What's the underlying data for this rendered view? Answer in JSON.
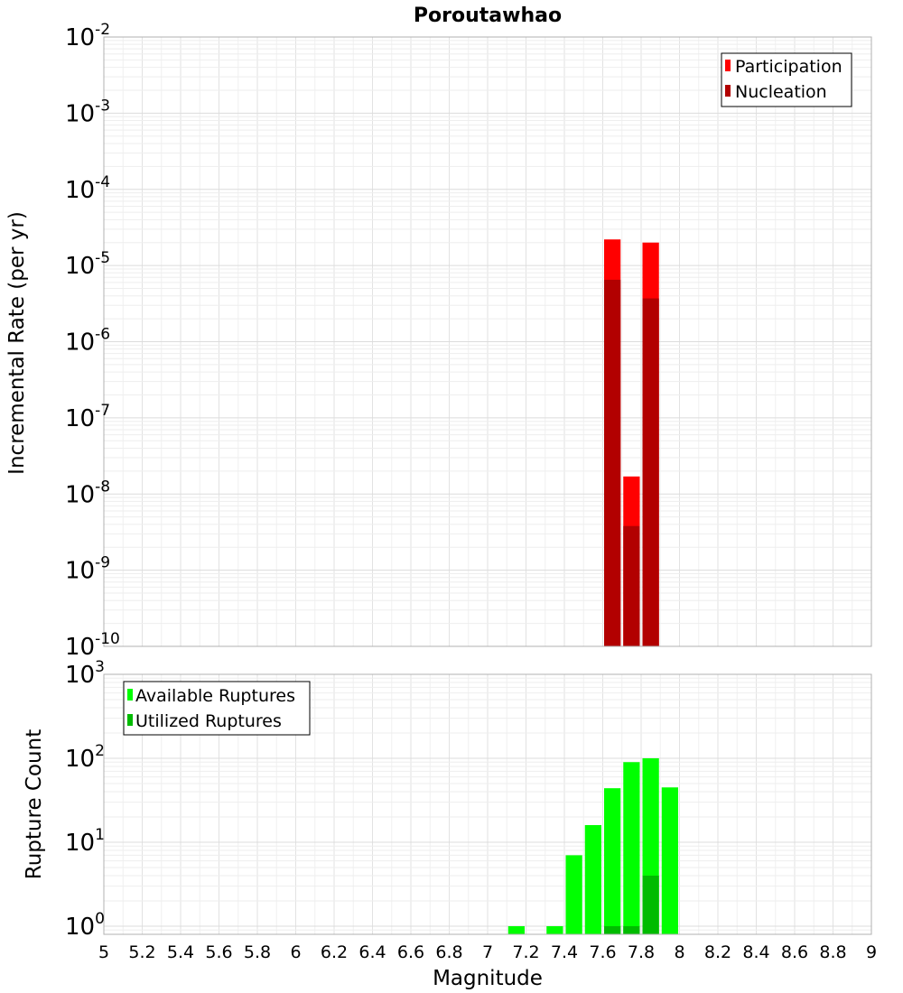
{
  "chart_data": [
    {
      "type": "bar",
      "title": "Poroutawhao",
      "xlabel": "",
      "ylabel": "Incremental Rate (per yr)",
      "y_scale": "log",
      "xlim": [
        5,
        9
      ],
      "ylim": [
        1e-10,
        0.01
      ],
      "y_ticks": [
        {
          "base": "10",
          "exp": "-10"
        },
        {
          "base": "10",
          "exp": "-9"
        },
        {
          "base": "10",
          "exp": "-8"
        },
        {
          "base": "10",
          "exp": "-7"
        },
        {
          "base": "10",
          "exp": "-6"
        },
        {
          "base": "10",
          "exp": "-5"
        },
        {
          "base": "10",
          "exp": "-4"
        },
        {
          "base": "10",
          "exp": "-3"
        },
        {
          "base": "10",
          "exp": "-2"
        }
      ],
      "grid": true,
      "legend_position": "top-right",
      "bin_width": 0.1,
      "series": [
        {
          "name": "Participation",
          "color": "#ff0000",
          "points": [
            {
              "x": 7.65,
              "y": 2.2e-05
            },
            {
              "x": 7.75,
              "y": 1.7e-08
            },
            {
              "x": 7.85,
              "y": 2e-05
            }
          ]
        },
        {
          "name": "Nucleation",
          "color": "#b20000",
          "points": [
            {
              "x": 7.65,
              "y": 6.5e-06
            },
            {
              "x": 7.75,
              "y": 3.8e-09
            },
            {
              "x": 7.85,
              "y": 3.7e-06
            }
          ]
        }
      ]
    },
    {
      "type": "bar",
      "title": "",
      "xlabel": "Magnitude",
      "ylabel": "Rupture Count",
      "y_scale": "log",
      "xlim": [
        5,
        9
      ],
      "ylim": [
        0.8,
        1000
      ],
      "y_ticks": [
        {
          "base": "10",
          "exp": "0",
          "value": 1
        },
        {
          "base": "10",
          "exp": "1",
          "value": 10
        },
        {
          "base": "10",
          "exp": "2",
          "value": 100
        },
        {
          "base": "10",
          "exp": "3",
          "value": 1000
        }
      ],
      "x_ticks": [
        "5",
        "5.2",
        "5.4",
        "5.6",
        "5.8",
        "6",
        "6.2",
        "6.4",
        "6.6",
        "6.8",
        "7",
        "7.2",
        "7.4",
        "7.6",
        "7.8",
        "8",
        "8.2",
        "8.4",
        "8.6",
        "8.8",
        "9"
      ],
      "grid": true,
      "legend_position": "top-left",
      "bin_width": 0.1,
      "series": [
        {
          "name": "Available Ruptures",
          "color": "#00ff00",
          "points": [
            {
              "x": 7.15,
              "y": 1
            },
            {
              "x": 7.35,
              "y": 1
            },
            {
              "x": 7.45,
              "y": 7
            },
            {
              "x": 7.55,
              "y": 16
            },
            {
              "x": 7.65,
              "y": 44
            },
            {
              "x": 7.75,
              "y": 90
            },
            {
              "x": 7.85,
              "y": 100
            },
            {
              "x": 7.95,
              "y": 45
            }
          ]
        },
        {
          "name": "Utilized Ruptures",
          "color": "#00bb00",
          "points": [
            {
              "x": 7.65,
              "y": 1
            },
            {
              "x": 7.75,
              "y": 1
            },
            {
              "x": 7.85,
              "y": 4
            }
          ]
        }
      ]
    }
  ]
}
